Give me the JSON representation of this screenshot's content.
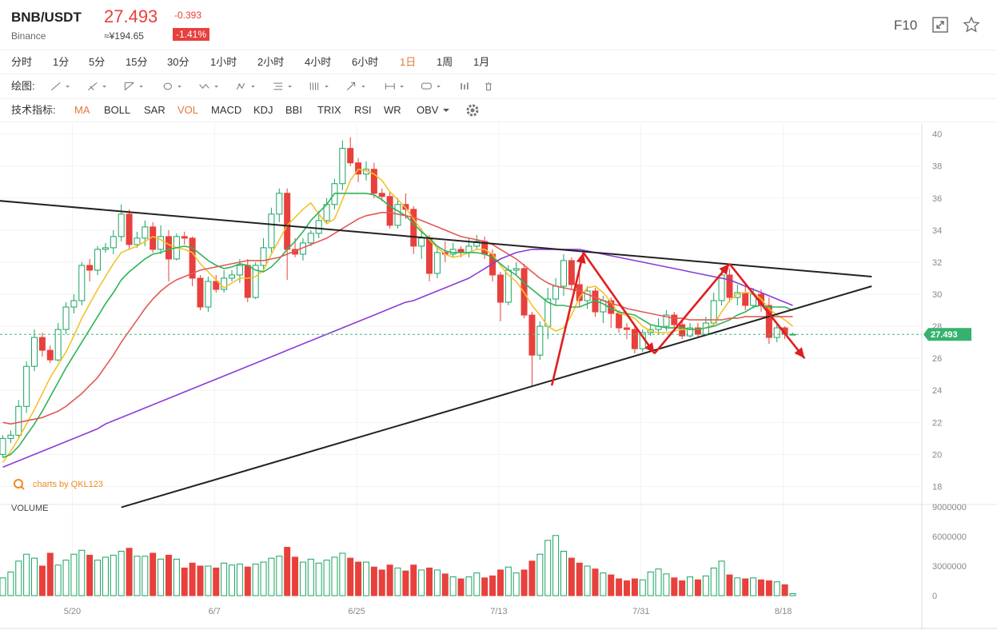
{
  "header": {
    "pair": "BNB/USDT",
    "exchange": "Binance",
    "price": "27.493",
    "change": "-0.393",
    "cny_price": "≈¥194.65",
    "change_pct": "-1.41%",
    "f10_label": "F10",
    "icons": [
      "expand-icon",
      "star-icon"
    ]
  },
  "timeframes": [
    "分时",
    "1分",
    "5分",
    "15分",
    "30分",
    "1小时",
    "2小时",
    "4小时",
    "6小时",
    "1日",
    "1周",
    "1月"
  ],
  "active_timeframe": "1日",
  "drawing": {
    "label": "绘图:",
    "tools": [
      "line-tool-icon",
      "ray-tool-icon",
      "channel-tool-icon",
      "shape-tool-icon",
      "wave-tool-icon",
      "pattern-tool-icon",
      "fibonacci-tool-icon",
      "gann-tool-icon",
      "arrow-tool-icon",
      "measure-tool-icon",
      "text-tool-icon",
      "indicator-tool-icon",
      "trash-icon"
    ]
  },
  "indicators": {
    "label": "技术指标:",
    "items": [
      "MA",
      "BOLL",
      "SAR",
      "VOL",
      "MACD",
      "KDJ",
      "BBI",
      "TRIX",
      "RSI",
      "WR",
      "OBV"
    ],
    "active": [
      "MA",
      "VOL"
    ],
    "settings_icon": "gear-icon"
  },
  "chart_data": {
    "type": "candlestick",
    "price_axis": {
      "ticks": [
        18,
        20,
        22,
        24,
        26,
        28,
        30,
        32,
        34,
        36,
        38,
        40
      ],
      "range": [
        17.7,
        40.5
      ]
    },
    "current_price_label": "27.493",
    "volume_axis": {
      "title": "VOLUME",
      "ticks": [
        "0",
        "3000000",
        "6000000",
        "9000000"
      ],
      "range": [
        0,
        9000000
      ]
    },
    "x_labels": [
      "5/20",
      "6/7",
      "6/25",
      "7/13",
      "7/31",
      "8/18"
    ],
    "watermark": "charts by QKL123",
    "colors": {
      "up": "#1aa462",
      "down": "#e8403c",
      "ma5": "#f3c22a",
      "ma10": "#2fb35a",
      "ma30": "#e05a55",
      "ma60": "#8a3cd6",
      "trend": "#222222",
      "arrow": "#e01e1e",
      "price_tag": "#35b36e"
    },
    "candles": [
      [
        20.0,
        21.0,
        19.8,
        21.2,
        1800000
      ],
      [
        21.0,
        21.2,
        20.7,
        21.5,
        2400000
      ],
      [
        21.2,
        23.0,
        21.0,
        23.4,
        3500000
      ],
      [
        23.0,
        25.5,
        22.6,
        25.8,
        4200000
      ],
      [
        25.5,
        27.3,
        25.2,
        27.8,
        3800000
      ],
      [
        27.3,
        26.5,
        26.1,
        27.6,
        3000000
      ],
      [
        26.5,
        25.9,
        25.7,
        26.8,
        4300000
      ],
      [
        25.9,
        27.8,
        25.8,
        28.2,
        3100000
      ],
      [
        27.8,
        29.2,
        27.5,
        29.5,
        3600000
      ],
      [
        29.2,
        29.6,
        28.8,
        30.0,
        4200000
      ],
      [
        29.6,
        31.8,
        29.3,
        32.0,
        4600000
      ],
      [
        31.8,
        31.5,
        30.8,
        32.2,
        4100000
      ],
      [
        31.5,
        32.8,
        31.2,
        33.0,
        3600000
      ],
      [
        32.8,
        32.9,
        32.6,
        33.2,
        3900000
      ],
      [
        32.9,
        33.6,
        32.5,
        34.0,
        4100000
      ],
      [
        33.6,
        35.0,
        33.3,
        35.6,
        4500000
      ],
      [
        35.0,
        33.1,
        32.8,
        35.3,
        4800000
      ],
      [
        33.1,
        33.5,
        32.9,
        33.9,
        4000000
      ],
      [
        33.5,
        34.2,
        33.0,
        34.6,
        4000000
      ],
      [
        34.2,
        32.8,
        32.6,
        34.5,
        4300000
      ],
      [
        32.8,
        33.6,
        32.5,
        34.3,
        3700000
      ],
      [
        33.6,
        32.2,
        30.8,
        34.0,
        4100000
      ],
      [
        32.2,
        33.6,
        32.1,
        33.8,
        3700000
      ],
      [
        33.6,
        33.5,
        33.1,
        33.9,
        2800000
      ],
      [
        33.5,
        31.0,
        30.5,
        33.6,
        3300000
      ],
      [
        31.0,
        29.2,
        29.0,
        31.2,
        3000000
      ],
      [
        29.2,
        30.8,
        28.9,
        31.1,
        3000000
      ],
      [
        30.8,
        30.3,
        30.1,
        31.2,
        2800000
      ],
      [
        30.3,
        31.0,
        30.1,
        31.5,
        3300000
      ],
      [
        31.0,
        31.2,
        30.8,
        31.5,
        3100000
      ],
      [
        31.2,
        31.8,
        30.7,
        32.2,
        3200000
      ],
      [
        31.8,
        29.8,
        29.5,
        32.2,
        2900000
      ],
      [
        29.8,
        31.8,
        29.7,
        32.0,
        3200000
      ],
      [
        31.8,
        32.9,
        31.5,
        33.5,
        3400000
      ],
      [
        32.9,
        35.0,
        32.6,
        35.4,
        3800000
      ],
      [
        35.0,
        36.3,
        34.5,
        36.6,
        4000000
      ],
      [
        36.3,
        32.8,
        30.9,
        36.6,
        4900000
      ],
      [
        32.8,
        32.5,
        32.3,
        33.5,
        3900000
      ],
      [
        32.5,
        33.2,
        32.1,
        33.5,
        3400000
      ],
      [
        33.2,
        33.8,
        33.0,
        34.0,
        3700000
      ],
      [
        33.8,
        34.6,
        33.5,
        35.2,
        3300000
      ],
      [
        34.6,
        35.6,
        34.4,
        36.0,
        3600000
      ],
      [
        35.6,
        36.9,
        35.3,
        37.2,
        3900000
      ],
      [
        36.9,
        39.1,
        36.5,
        39.6,
        4300000
      ],
      [
        39.1,
        38.2,
        38.0,
        39.8,
        3800000
      ],
      [
        38.2,
        37.5,
        37.0,
        38.5,
        3400000
      ],
      [
        37.5,
        37.8,
        37.1,
        38.3,
        3400000
      ],
      [
        37.8,
        36.3,
        36.0,
        38.2,
        2900000
      ],
      [
        36.3,
        36.1,
        35.8,
        36.6,
        2600000
      ],
      [
        36.1,
        34.3,
        34.1,
        36.4,
        3100000
      ],
      [
        34.3,
        35.6,
        34.1,
        36.0,
        2800000
      ],
      [
        35.6,
        35.3,
        34.7,
        36.3,
        2500000
      ],
      [
        35.3,
        33.0,
        32.5,
        35.5,
        3100000
      ],
      [
        33.0,
        33.5,
        32.2,
        34.1,
        2600000
      ],
      [
        33.5,
        31.3,
        30.8,
        33.7,
        2800000
      ],
      [
        31.3,
        32.6,
        31.0,
        33.0,
        2600000
      ],
      [
        32.6,
        32.5,
        32.0,
        33.3,
        2200000
      ],
      [
        32.5,
        32.8,
        32.3,
        33.2,
        1900000
      ],
      [
        32.8,
        32.6,
        32.3,
        33.0,
        1700000
      ],
      [
        32.6,
        33.0,
        32.3,
        33.5,
        1900000
      ],
      [
        33.0,
        33.3,
        32.8,
        33.7,
        2300000
      ],
      [
        33.3,
        32.5,
        32.2,
        33.6,
        1800000
      ],
      [
        32.5,
        31.2,
        30.8,
        32.8,
        2000000
      ],
      [
        31.2,
        29.5,
        28.3,
        31.4,
        2600000
      ],
      [
        29.5,
        31.5,
        29.3,
        31.8,
        2900000
      ],
      [
        31.5,
        31.6,
        31.2,
        32.0,
        2300000
      ],
      [
        31.6,
        28.7,
        28.5,
        31.9,
        2600000
      ],
      [
        28.7,
        26.2,
        24.3,
        28.9,
        3500000
      ],
      [
        26.2,
        28.0,
        25.9,
        28.3,
        4200000
      ],
      [
        28.0,
        29.7,
        27.2,
        30.4,
        5600000
      ],
      [
        29.7,
        30.5,
        29.3,
        31.0,
        6100000
      ],
      [
        30.5,
        32.1,
        29.9,
        32.5,
        4500000
      ],
      [
        32.1,
        30.6,
        30.3,
        32.3,
        3800000
      ],
      [
        30.6,
        29.6,
        29.2,
        31.8,
        3300000
      ],
      [
        29.6,
        30.2,
        29.1,
        30.5,
        3000000
      ],
      [
        30.2,
        28.9,
        28.6,
        30.4,
        2700000
      ],
      [
        28.9,
        29.6,
        28.2,
        29.9,
        2300000
      ],
      [
        29.6,
        28.8,
        27.9,
        29.8,
        2100000
      ],
      [
        28.8,
        27.9,
        27.6,
        29.0,
        1700000
      ],
      [
        27.9,
        27.8,
        27.2,
        28.2,
        1500000
      ],
      [
        27.8,
        26.6,
        26.3,
        28.1,
        1700000
      ],
      [
        26.6,
        27.6,
        26.4,
        27.8,
        1600000
      ],
      [
        27.6,
        27.8,
        27.4,
        28.1,
        2400000
      ],
      [
        27.8,
        28.0,
        27.5,
        28.5,
        2700000
      ],
      [
        28.0,
        28.7,
        27.7,
        29.0,
        2200000
      ],
      [
        28.7,
        28.1,
        27.9,
        28.9,
        1800000
      ],
      [
        28.1,
        27.4,
        27.2,
        28.3,
        1500000
      ],
      [
        27.4,
        27.9,
        27.3,
        28.2,
        1900000
      ],
      [
        27.9,
        27.5,
        27.3,
        28.2,
        1600000
      ],
      [
        27.5,
        28.2,
        27.4,
        28.6,
        2000000
      ],
      [
        28.2,
        29.6,
        28.0,
        30.1,
        2800000
      ],
      [
        29.6,
        31.2,
        29.3,
        31.6,
        3500000
      ],
      [
        31.2,
        29.8,
        29.5,
        31.6,
        2100000
      ],
      [
        29.8,
        30.1,
        29.3,
        30.6,
        1800000
      ],
      [
        30.1,
        29.3,
        29.0,
        30.5,
        1700000
      ],
      [
        29.3,
        30.0,
        29.1,
        30.4,
        1800000
      ],
      [
        30.0,
        29.3,
        28.9,
        30.3,
        1600000
      ],
      [
        29.3,
        27.3,
        26.9,
        29.8,
        1500000
      ],
      [
        27.3,
        27.9,
        27.0,
        28.2,
        1400000
      ],
      [
        27.9,
        27.5,
        27.2,
        28.0,
        1100000
      ],
      [
        27.5,
        27.5,
        27.5,
        27.6,
        200000
      ]
    ],
    "series": [
      {
        "name": "MA5",
        "values": [
          19.5,
          20.2,
          21.0,
          21.9,
          22.8,
          23.8,
          24.8,
          25.6,
          26.4,
          27.4,
          28.5,
          29.4,
          30.3,
          31.1,
          31.9,
          32.6,
          32.8,
          33.0,
          33.3,
          33.6,
          33.4,
          33.1,
          32.9,
          32.8,
          32.6,
          31.9,
          31.4,
          30.9,
          30.4,
          30.7,
          31.0,
          31.0,
          31.1,
          31.5,
          32.5,
          33.4,
          34.3,
          34.8,
          35.3,
          35.7,
          35.0,
          34.4,
          34.7,
          35.9,
          37.1,
          37.8,
          37.7,
          37.5,
          37.1,
          36.4,
          35.9,
          35.4,
          34.7,
          34.0,
          33.4,
          32.9,
          32.5,
          32.3,
          32.4,
          32.6,
          32.8,
          32.8,
          32.5,
          31.8,
          31.2,
          30.8,
          30.1,
          29.3,
          28.7,
          28.0,
          27.7,
          27.9,
          28.7,
          29.8,
          30.4,
          30.5,
          30.1,
          29.5,
          28.8,
          28.7,
          28.5,
          28.0,
          27.7,
          27.6,
          27.6,
          27.7,
          27.8,
          27.8,
          27.8,
          27.9,
          28.1,
          28.9,
          29.6,
          30.0,
          30.1,
          30.1,
          29.7,
          29.1,
          28.7,
          28.4,
          28.0
        ]
      },
      {
        "name": "MA10",
        "values": [
          19.8,
          20.0,
          20.5,
          21.2,
          21.9,
          22.7,
          23.6,
          24.5,
          25.4,
          26.2,
          27.0,
          27.8,
          28.6,
          29.4,
          30.1,
          30.9,
          31.4,
          31.8,
          32.2,
          32.5,
          32.6,
          32.8,
          32.9,
          33.0,
          32.9,
          32.5,
          32.1,
          31.8,
          31.6,
          31.7,
          31.9,
          31.8,
          31.5,
          31.4,
          31.7,
          32.2,
          32.8,
          33.3,
          33.9,
          34.6,
          35.1,
          35.6,
          36.3,
          36.3,
          36.3,
          36.3,
          36.3,
          36.2,
          35.9,
          35.5,
          35.2,
          34.9,
          34.4,
          33.9,
          33.5,
          33.0,
          32.7,
          32.6,
          32.6,
          32.6,
          32.6,
          32.5,
          32.3,
          31.9,
          31.5,
          31.2,
          30.7,
          30.3,
          29.9,
          29.5,
          29.3,
          29.3,
          29.2,
          29.2,
          29.4,
          29.6,
          29.4,
          29.1,
          28.9,
          28.8,
          28.7,
          28.4,
          28.1,
          28.0,
          27.9,
          27.9,
          27.9,
          27.8,
          27.8,
          27.9,
          28.0,
          28.2,
          28.4,
          28.7,
          28.9,
          29.2,
          29.3,
          29.2,
          29.2,
          29.2,
          29.0
        ]
      },
      {
        "name": "MA30",
        "values": [
          22.0,
          21.9,
          22.0,
          22.1,
          22.2,
          22.3,
          22.5,
          22.7,
          23.0,
          23.4,
          23.8,
          24.3,
          24.8,
          25.5,
          26.2,
          27.0,
          27.7,
          28.4,
          29.1,
          29.7,
          30.2,
          30.6,
          30.9,
          31.1,
          31.3,
          31.5,
          31.6,
          31.7,
          31.8,
          31.9,
          32.0,
          32.1,
          32.1,
          32.1,
          32.2,
          32.3,
          32.5,
          32.7,
          32.9,
          33.1,
          33.3,
          33.5,
          33.8,
          34.1,
          34.4,
          34.7,
          34.9,
          35.0,
          35.1,
          35.1,
          35.0,
          34.9,
          34.8,
          34.6,
          34.4,
          34.2,
          34.0,
          33.8,
          33.6,
          33.5,
          33.4,
          33.3,
          33.1,
          32.8,
          32.5,
          32.2,
          31.8,
          31.4,
          31.0,
          30.7,
          30.5,
          30.4,
          30.3,
          30.2,
          30.0,
          29.8,
          29.6,
          29.4,
          29.3,
          29.1,
          29.0,
          28.9,
          28.8,
          28.7,
          28.6,
          28.5,
          28.5,
          28.4,
          28.4,
          28.4,
          28.4,
          28.4,
          28.5,
          28.5,
          28.6,
          28.6,
          28.6,
          28.6,
          28.6,
          28.6,
          28.6
        ]
      },
      {
        "name": "MA60",
        "values": [
          19.2,
          19.4,
          19.6,
          19.8,
          20.0,
          20.2,
          20.4,
          20.6,
          20.8,
          21.0,
          21.2,
          21.4,
          21.6,
          21.9,
          22.1,
          22.3,
          22.5,
          22.7,
          22.9,
          23.1,
          23.3,
          23.5,
          23.7,
          23.9,
          24.1,
          24.3,
          24.5,
          24.7,
          24.9,
          25.1,
          25.3,
          25.5,
          25.7,
          25.9,
          26.1,
          26.3,
          26.5,
          26.7,
          26.9,
          27.1,
          27.3,
          27.5,
          27.7,
          27.9,
          28.1,
          28.3,
          28.5,
          28.7,
          28.9,
          29.1,
          29.3,
          29.5,
          29.6,
          29.8,
          30.0,
          30.2,
          30.4,
          30.6,
          30.8,
          31.0,
          31.3,
          31.6,
          31.9,
          32.2,
          32.4,
          32.6,
          32.7,
          32.8,
          32.8,
          32.8,
          32.8,
          32.8,
          32.8,
          32.8,
          32.7,
          32.6,
          32.5,
          32.4,
          32.3,
          32.2,
          32.1,
          32.0,
          31.9,
          31.8,
          31.7,
          31.6,
          31.5,
          31.4,
          31.3,
          31.2,
          31.1,
          31.0,
          30.9,
          30.7,
          30.5,
          30.3,
          30.1,
          29.9,
          29.7,
          29.5,
          29.3
        ]
      }
    ],
    "trendlines": [
      {
        "from": [
          -2,
          35.9
        ],
        "to": [
          110,
          31.1
        ]
      },
      {
        "from": [
          15,
          16.7
        ],
        "to": [
          110,
          30.5
        ]
      }
    ],
    "arrows": [
      {
        "from": [
          69.5,
          24.3
        ],
        "to": [
          73.5,
          32.6
        ]
      },
      {
        "from": [
          73.5,
          32.6
        ],
        "to": [
          82.5,
          26.3
        ]
      },
      {
        "from": [
          82.5,
          26.3
        ],
        "to": [
          92,
          31.9
        ]
      },
      {
        "from": [
          92,
          31.9
        ],
        "to": [
          101.5,
          26.0
        ]
      }
    ]
  }
}
